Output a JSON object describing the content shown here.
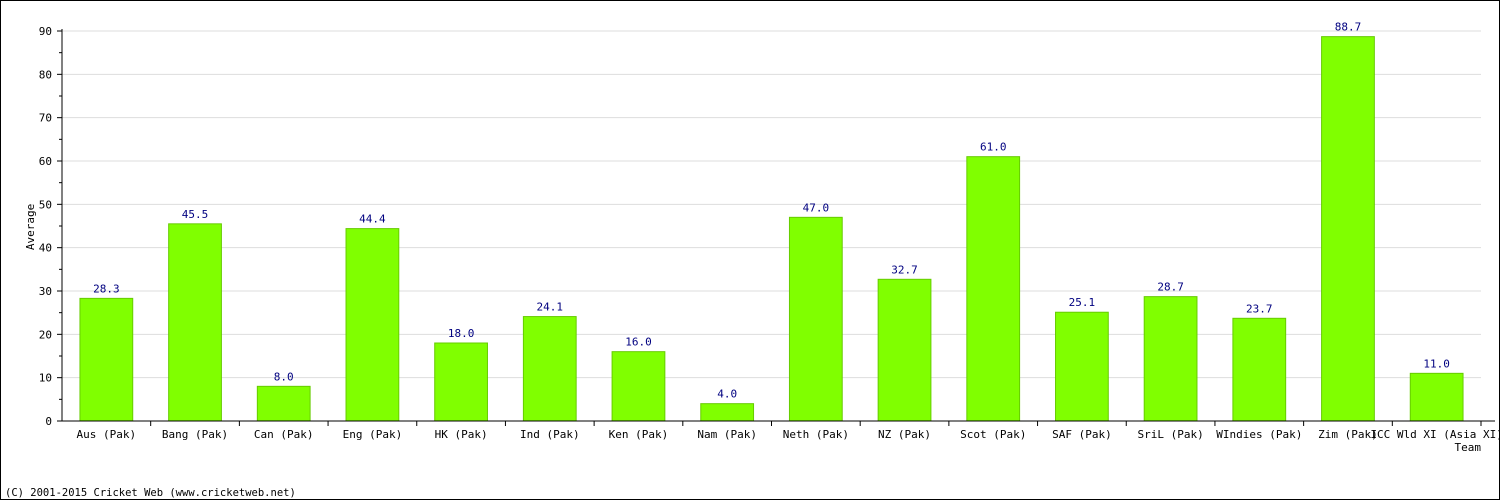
{
  "chart_data": {
    "type": "bar",
    "xlabel": "Team",
    "ylabel": "Average",
    "ylim": [
      0,
      90
    ],
    "yticks": [
      0,
      10,
      20,
      30,
      40,
      50,
      60,
      70,
      80,
      90
    ],
    "grid": true,
    "bar_color": "#80ff00",
    "bar_border_color": "#66cc00",
    "value_label_color": "#000080",
    "categories": [
      "Aus (Pak)",
      "Bang (Pak)",
      "Can (Pak)",
      "Eng (Pak)",
      "HK (Pak)",
      "Ind (Pak)",
      "Ken (Pak)",
      "Nam (Pak)",
      "Neth (Pak)",
      "NZ (Pak)",
      "Scot (Pak)",
      "SAF (Pak)",
      "SriL (Pak)",
      "WIndies (Pak)",
      "Zim (Pak)",
      "ICC Wld XI (Asia XI)"
    ],
    "values": [
      28.3,
      45.5,
      8.0,
      44.4,
      18.0,
      24.1,
      16.0,
      4.0,
      47.0,
      32.7,
      61.0,
      25.1,
      28.7,
      23.7,
      88.7,
      11.0
    ],
    "value_labels": [
      "28.3",
      "45.5",
      "8.0",
      "44.4",
      "18.0",
      "24.1",
      "16.0",
      "4.0",
      "47.0",
      "32.7",
      "61.0",
      "25.1",
      "28.7",
      "23.7",
      "88.7",
      "11.0"
    ]
  },
  "footer": {
    "copyright": "(C) 2001-2015 Cricket Web (www.cricketweb.net)"
  }
}
